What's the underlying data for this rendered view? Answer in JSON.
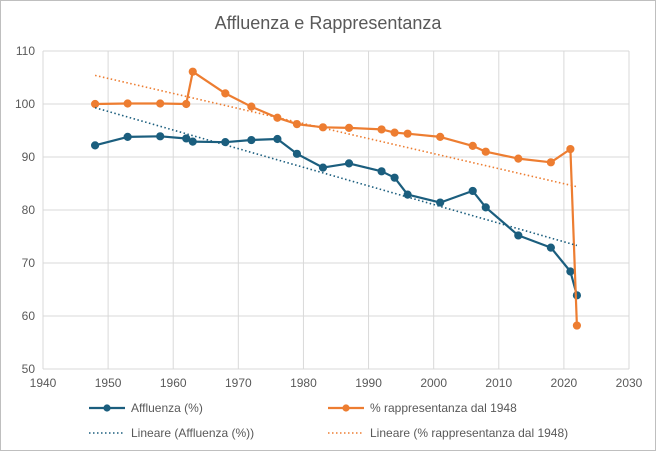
{
  "chart_data": {
    "type": "line",
    "title": "Affluenza e Rappresentanza",
    "xlabel": "",
    "ylabel": "",
    "xlim": [
      1940,
      2030
    ],
    "ylim": [
      50,
      110
    ],
    "x_ticks": [
      1940,
      1950,
      1960,
      1970,
      1980,
      1990,
      2000,
      2010,
      2020,
      2030
    ],
    "y_ticks": [
      50,
      60,
      70,
      80,
      90,
      100,
      110
    ],
    "grid": true,
    "legend_position": "bottom",
    "series": [
      {
        "name": "Affluenza (%)",
        "color": "#1b5e7e",
        "style": "line-markers",
        "points": [
          [
            1948,
            92.2
          ],
          [
            1953,
            93.8
          ],
          [
            1958,
            93.9
          ],
          [
            1962,
            93.5
          ],
          [
            1963,
            92.9
          ],
          [
            1968,
            92.8
          ],
          [
            1972,
            93.2
          ],
          [
            1976,
            93.4
          ],
          [
            1979,
            90.6
          ],
          [
            1983,
            88.0
          ],
          [
            1987,
            88.8
          ],
          [
            1992,
            87.3
          ],
          [
            1994,
            86.1
          ],
          [
            1996,
            82.9
          ],
          [
            2001,
            81.4
          ],
          [
            2006,
            83.6
          ],
          [
            2008,
            80.5
          ],
          [
            2013,
            75.2
          ],
          [
            2018,
            72.9
          ],
          [
            2021,
            68.4
          ],
          [
            2022,
            63.9
          ]
        ]
      },
      {
        "name": "% rappresentanza dal 1948",
        "color": "#ed7d31",
        "style": "line-markers",
        "points": [
          [
            1948,
            100.0
          ],
          [
            1953,
            100.1
          ],
          [
            1958,
            100.1
          ],
          [
            1962,
            100.0
          ],
          [
            1963,
            106.1
          ],
          [
            1968,
            102.0
          ],
          [
            1972,
            99.5
          ],
          [
            1976,
            97.4
          ],
          [
            1979,
            96.2
          ],
          [
            1983,
            95.6
          ],
          [
            1987,
            95.5
          ],
          [
            1992,
            95.2
          ],
          [
            1994,
            94.6
          ],
          [
            1996,
            94.4
          ],
          [
            2001,
            93.8
          ],
          [
            2006,
            92.1
          ],
          [
            2008,
            91.0
          ],
          [
            2013,
            89.7
          ],
          [
            2018,
            89.0
          ],
          [
            2021,
            91.5
          ],
          [
            2022,
            58.2
          ]
        ]
      },
      {
        "name": "Lineare (Affluenza (%))",
        "color": "#1b5e7e",
        "style": "dotted",
        "points": [
          [
            1948,
            99.3
          ],
          [
            2022,
            73.3
          ]
        ]
      },
      {
        "name": "Lineare (% rappresentanza dal 1948)",
        "color": "#ed7d31",
        "style": "dotted",
        "points": [
          [
            1948,
            105.4
          ],
          [
            2022,
            84.4
          ]
        ]
      }
    ]
  }
}
